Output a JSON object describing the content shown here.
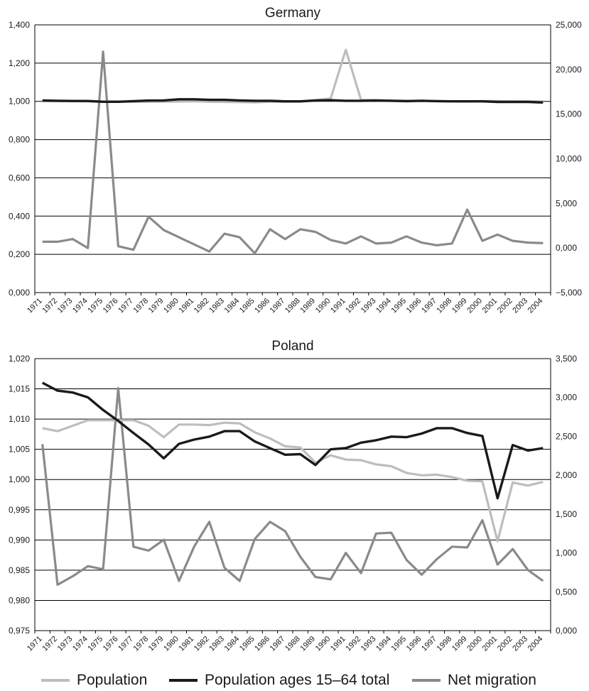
{
  "colors": {
    "population": "#bdbdbd",
    "working_age": "#1a1a1a",
    "net_migration": "#8a8a8a",
    "grid": "#000000",
    "text": "#1a1a1a"
  },
  "legend": {
    "population": "Population",
    "working_age": "Population ages 15–64 total",
    "net_migration": "Net migration"
  },
  "chart_data": [
    {
      "type": "line",
      "title": "Germany",
      "x": [
        "1971",
        "1972",
        "1973",
        "1974",
        "1975",
        "1976",
        "1977",
        "1978",
        "1979",
        "1980",
        "1981",
        "1982",
        "1983",
        "1984",
        "1985",
        "1986",
        "1987",
        "1988",
        "1989",
        "1990",
        "1991",
        "1992",
        "1993",
        "1994",
        "1995",
        "1996",
        "1997",
        "1998",
        "1999",
        "2000",
        "2001",
        "2002",
        "2003",
        "2004"
      ],
      "ylim_left": [
        0,
        1.4
      ],
      "yticks_left": [
        "0,000",
        "0,200",
        "0,400",
        "0,600",
        "0,800",
        "1,000",
        "1,200",
        "1,400"
      ],
      "ylim_right": [
        -5000,
        25000
      ],
      "yticks_right": [
        "−5,000",
        "0,000",
        "5,000",
        "10,000",
        "15,000",
        "20,000",
        "25,000"
      ],
      "series": [
        {
          "name": "Population",
          "axis": "left",
          "values": [
            1.0,
            1.001,
            1.001,
            1.0,
            0.999,
            0.999,
            0.998,
            0.998,
            0.998,
            0.999,
            1.0,
            0.998,
            0.997,
            0.996,
            0.995,
            0.998,
            0.998,
            0.999,
            1.007,
            1.015,
            1.27,
            1.008,
            1.007,
            1.004,
            1.003,
            1.003,
            1.001,
            1.0,
            1.0,
            1.001,
            1.001,
            1.0,
            1.0,
            0.999
          ]
        },
        {
          "name": "Population ages 15–64 total",
          "axis": "left",
          "values": [
            1.005,
            1.003,
            1.002,
            1.002,
            0.998,
            0.998,
            1.001,
            1.004,
            1.005,
            1.011,
            1.011,
            1.008,
            1.008,
            1.005,
            1.003,
            1.003,
            1.0,
            1.0,
            1.004,
            1.006,
            1.003,
            1.003,
            1.004,
            1.003,
            1.001,
            1.003,
            1.001,
            1.0,
            1.0,
            1.0,
            0.997,
            0.997,
            0.997,
            0.994
          ]
        },
        {
          "name": "Net migration",
          "axis": "right",
          "values": [
            700,
            700,
            1000,
            0,
            22000,
            200,
            -200,
            3500,
            2000,
            1200,
            400,
            -400,
            1600,
            1200,
            -600,
            2100,
            1000,
            2100,
            1800,
            900,
            500,
            1300,
            500,
            600,
            1300,
            600,
            300,
            500,
            4300,
            800,
            1500,
            800,
            600,
            550
          ]
        }
      ]
    },
    {
      "type": "line",
      "title": "Poland",
      "x": [
        "1971",
        "1972",
        "1973",
        "1974",
        "1975",
        "1976",
        "1977",
        "1978",
        "1979",
        "1980",
        "1981",
        "1982",
        "1983",
        "1984",
        "1985",
        "1986",
        "1987",
        "1988",
        "1989",
        "1990",
        "1991",
        "1992",
        "1993",
        "1994",
        "1995",
        "1996",
        "1997",
        "1998",
        "1999",
        "2000",
        "2001",
        "2002",
        "2003",
        "2004"
      ],
      "ylim_left": [
        0.975,
        1.02
      ],
      "yticks_left": [
        "0,975",
        "0,980",
        "0,985",
        "0,990",
        "0,995",
        "1,000",
        "1,005",
        "1,010",
        "1,015",
        "1,020"
      ],
      "ylim_right": [
        0,
        3500
      ],
      "yticks_right": [
        "0,000",
        "0,500",
        "1,000",
        "1,500",
        "2,000",
        "2,500",
        "3,000",
        "3,500"
      ],
      "series": [
        {
          "name": "Population",
          "axis": "left",
          "values": [
            1.0085,
            1.008,
            1.0089,
            1.0098,
            1.0098,
            1.0098,
            1.0098,
            1.0089,
            1.007,
            1.0091,
            1.0091,
            1.009,
            1.0094,
            1.0093,
            1.0078,
            1.0068,
            1.0055,
            1.0053,
            1.0028,
            1.004,
            1.0033,
            1.0032,
            1.0025,
            1.0022,
            1.0011,
            1.0007,
            1.0008,
            1.0004,
            0.9998,
            0.9997,
            0.9898,
            0.9995,
            0.999,
            0.9996
          ]
        },
        {
          "name": "Population ages 15–64 total",
          "axis": "left",
          "values": [
            1.016,
            1.0147,
            1.0144,
            1.0136,
            1.0115,
            1.0097,
            1.0077,
            1.0058,
            1.0035,
            1.0059,
            1.0066,
            1.0071,
            1.008,
            1.008,
            1.0063,
            1.0052,
            1.0041,
            1.0042,
            1.0024,
            1.005,
            1.0052,
            1.0061,
            1.0065,
            1.0071,
            1.007,
            1.0076,
            1.0085,
            1.0085,
            1.0077,
            1.0072,
            0.9969,
            1.0057,
            1.0048,
            1.0052
          ]
        },
        {
          "name": "Net migration",
          "axis": "right",
          "values": [
            2400,
            590,
            700,
            830,
            790,
            3120,
            1080,
            1030,
            1170,
            640,
            1080,
            1400,
            810,
            640,
            1180,
            1400,
            1280,
            950,
            690,
            660,
            1000,
            740,
            1250,
            1260,
            910,
            720,
            920,
            1080,
            1070,
            1420,
            850,
            1050,
            780,
            640
          ]
        }
      ]
    }
  ]
}
